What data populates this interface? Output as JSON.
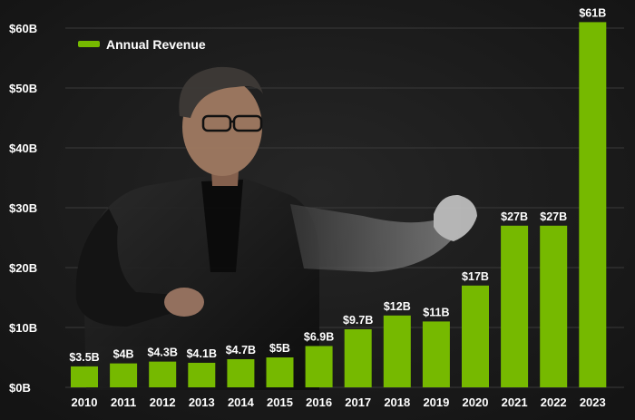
{
  "chart_data": {
    "type": "bar",
    "categories": [
      "2010",
      "2011",
      "2012",
      "2013",
      "2014",
      "2015",
      "2016",
      "2017",
      "2018",
      "2019",
      "2020",
      "2021",
      "2022",
      "2023"
    ],
    "series": [
      {
        "name": "Annual Revenue",
        "values": [
          3.5,
          4,
          4.3,
          4.1,
          4.7,
          5,
          6.9,
          9.7,
          12,
          11,
          17,
          27,
          27,
          61
        ],
        "labels": [
          "$3.5B",
          "$4B",
          "$4.3B",
          "$4.1B",
          "$4.7B",
          "$5B",
          "$6.9B",
          "$9.7B",
          "$12B",
          "$11B",
          "$17B",
          "$27B",
          "$27B",
          "$61B"
        ]
      }
    ],
    "ylim": [
      0,
      60
    ],
    "yticks": [
      0,
      10,
      20,
      30,
      40,
      50,
      60
    ],
    "ytick_labels": [
      "$0B",
      "$10B",
      "$20B",
      "$30B",
      "$40B",
      "$50B",
      "$60B"
    ],
    "grid": true,
    "legend_position": "top-left",
    "colors": {
      "bar": "#76b900",
      "background": "#1b1b1b",
      "grid": "#3a3a3a",
      "text": "#ffffff"
    }
  }
}
